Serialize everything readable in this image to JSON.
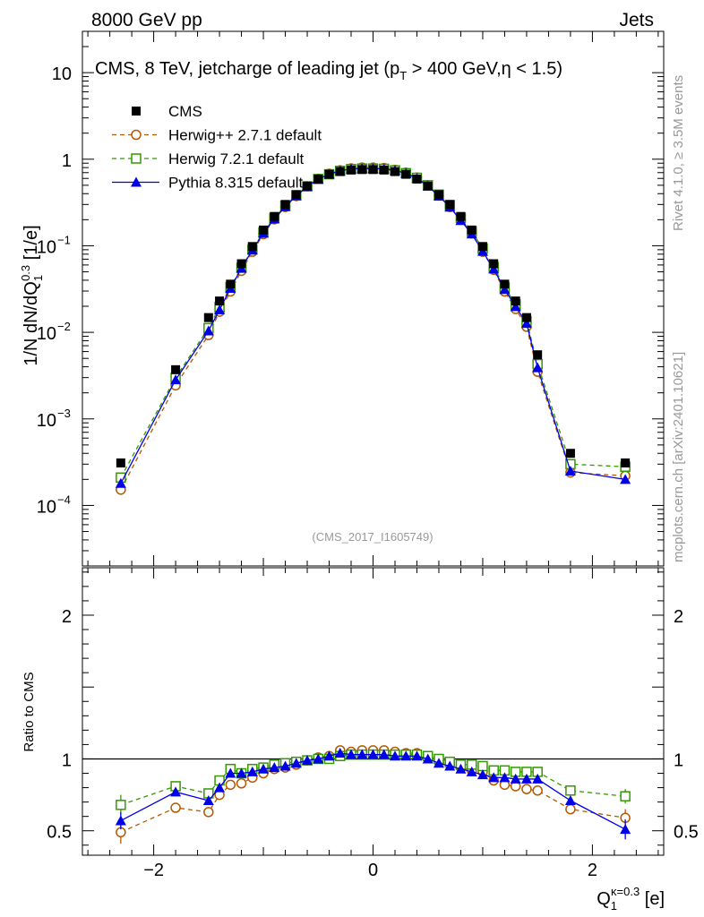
{
  "header": {
    "energy_label": "8000 GeV pp",
    "category_label": "Jets"
  },
  "side_text": {
    "rivet": "Rivet 4.1.0, ≥ 3.5M events",
    "mcplots": "mcplots.cern.ch [arXiv:2401.10621]"
  },
  "watermark": "(CMS_2017_I1605749)",
  "colors": {
    "cms": "#000000",
    "herwigpp": "#b35900",
    "herwig7": "#339900",
    "pythia": "#0000e6"
  },
  "chart_data": [
    {
      "type": "line",
      "title": "CMS, 8 TeV, jetcharge of leading jet (p_T > 400 GeV,η < 1.5)",
      "ylabel": "1/N dN/dQ_1^0.3 [1/e]",
      "yscale": "log",
      "ylim": [
        2e-05,
        30
      ],
      "xlim": [
        -2.65,
        2.65
      ],
      "x": [
        -2.3,
        -1.8,
        -1.5,
        -1.4,
        -1.3,
        -1.2,
        -1.1,
        -1.0,
        -0.9,
        -0.8,
        -0.7,
        -0.6,
        -0.5,
        -0.4,
        -0.3,
        -0.2,
        -0.1,
        0.0,
        0.1,
        0.2,
        0.3,
        0.4,
        0.5,
        0.6,
        0.7,
        0.8,
        0.9,
        1.0,
        1.1,
        1.2,
        1.3,
        1.4,
        1.5,
        1.8,
        2.3
      ],
      "y_ticks": [
        {
          "value": 10,
          "label": "10"
        },
        {
          "value": 1,
          "label": "1"
        },
        {
          "value": 0.1,
          "label": "10",
          "sup": "−1"
        },
        {
          "value": 0.01,
          "label": "10",
          "sup": "−2"
        },
        {
          "value": 0.001,
          "label": "10",
          "sup": "−3"
        },
        {
          "value": 0.0001,
          "label": "10",
          "sup": "−4"
        }
      ],
      "series": [
        {
          "name": "CMS",
          "style": "data",
          "values": [
            0.00031,
            0.0037,
            0.0148,
            0.023,
            0.036,
            0.062,
            0.098,
            0.152,
            0.218,
            0.3,
            0.39,
            0.49,
            0.59,
            0.67,
            0.72,
            0.75,
            0.76,
            0.76,
            0.75,
            0.72,
            0.67,
            0.59,
            0.49,
            0.39,
            0.3,
            0.218,
            0.152,
            0.098,
            0.062,
            0.036,
            0.023,
            0.0148,
            0.0055,
            0.0004,
            0.00031
          ]
        },
        {
          "name": "Herwig++ 2.7.1 default",
          "style": "herwigpp",
          "values": [
            0.000152,
            0.00244,
            0.0093,
            0.0173,
            0.0296,
            0.0513,
            0.0852,
            0.136,
            0.202,
            0.28,
            0.375,
            0.485,
            0.595,
            0.68,
            0.745,
            0.785,
            0.8,
            0.8,
            0.79,
            0.755,
            0.7,
            0.615,
            0.5,
            0.38,
            0.28,
            0.2,
            0.139,
            0.0852,
            0.0527,
            0.0296,
            0.0186,
            0.0116,
            0.0035,
            0.00024,
            0.00022
          ]
        },
        {
          "name": "Herwig 7.2.1 default",
          "style": "herwig7",
          "values": [
            0.00021,
            0.003,
            0.0112,
            0.0196,
            0.0333,
            0.0558,
            0.0911,
            0.143,
            0.209,
            0.291,
            0.382,
            0.485,
            0.59,
            0.67,
            0.735,
            0.77,
            0.78,
            0.78,
            0.775,
            0.745,
            0.69,
            0.61,
            0.5,
            0.39,
            0.295,
            0.21,
            0.146,
            0.093,
            0.057,
            0.033,
            0.021,
            0.0135,
            0.0043,
            0.0003,
            0.00028
          ]
        },
        {
          "name": "Pythia 8.315 default",
          "style": "pythia",
          "values": [
            0.00018,
            0.00283,
            0.0104,
            0.0182,
            0.0322,
            0.0551,
            0.0891,
            0.14,
            0.204,
            0.283,
            0.378,
            0.485,
            0.59,
            0.67,
            0.735,
            0.77,
            0.78,
            0.78,
            0.77,
            0.74,
            0.685,
            0.6,
            0.49,
            0.375,
            0.28,
            0.196,
            0.137,
            0.0862,
            0.0539,
            0.0313,
            0.0198,
            0.0127,
            0.0039,
            0.00025,
            0.0002
          ]
        }
      ],
      "legend_position": "top-left"
    },
    {
      "type": "line",
      "title": "",
      "ylabel": "Ratio to CMS",
      "xlabel": "Q_1^κ=0.3 [e]",
      "ylim": [
        0.33,
        2.33
      ],
      "xlim": [
        -2.65,
        2.65
      ],
      "reference_line": 1,
      "y_ticks": [
        {
          "value": 0.5,
          "label": "0.5"
        },
        {
          "value": 1,
          "label": "1"
        },
        {
          "value": 2,
          "label": "2"
        }
      ],
      "x_ticks": [
        {
          "value": -2,
          "label": "−2"
        },
        {
          "value": 0,
          "label": "0"
        },
        {
          "value": 2,
          "label": "2"
        }
      ],
      "x": [
        -2.3,
        -1.8,
        -1.5,
        -1.4,
        -1.3,
        -1.2,
        -1.1,
        -1.0,
        -0.9,
        -0.8,
        -0.7,
        -0.6,
        -0.5,
        -0.4,
        -0.3,
        -0.2,
        -0.1,
        0.0,
        0.1,
        0.2,
        0.3,
        0.4,
        0.5,
        0.6,
        0.7,
        0.8,
        0.9,
        1.0,
        1.1,
        1.2,
        1.3,
        1.4,
        1.5,
        1.8,
        2.3
      ],
      "series": [
        {
          "name": "Herwig++ 2.7.1 default",
          "style": "herwigpp",
          "values": [
            0.49,
            0.66,
            0.63,
            0.75,
            0.82,
            0.83,
            0.87,
            0.9,
            0.93,
            0.94,
            0.96,
            0.99,
            1.01,
            1.02,
            1.06,
            1.05,
            1.06,
            1.06,
            1.06,
            1.05,
            1.04,
            1.04,
            1.02,
            0.98,
            0.96,
            0.94,
            0.92,
            0.91,
            0.85,
            0.82,
            0.81,
            0.79,
            0.78,
            0.65,
            0.59
          ],
          "errors": [
            0.08,
            0.02,
            0.02,
            0.01,
            0.01,
            0.01,
            0.01,
            0.01,
            0.01,
            0.01,
            0.01,
            0.01,
            0.01,
            0.01,
            0.01,
            0.01,
            0.01,
            0.01,
            0.01,
            0.01,
            0.01,
            0.01,
            0.01,
            0.01,
            0.01,
            0.01,
            0.01,
            0.01,
            0.01,
            0.01,
            0.01,
            0.01,
            0.02,
            0.02,
            0.06
          ]
        },
        {
          "name": "Herwig 7.2.1 default",
          "style": "herwig7",
          "values": [
            0.68,
            0.81,
            0.76,
            0.85,
            0.93,
            0.9,
            0.93,
            0.94,
            0.96,
            0.97,
            0.98,
            0.99,
            1.0,
            1.0,
            1.02,
            1.03,
            1.03,
            1.03,
            1.03,
            1.03,
            1.03,
            1.03,
            1.02,
            1.0,
            0.98,
            0.96,
            0.96,
            0.95,
            0.92,
            0.92,
            0.91,
            0.91,
            0.91,
            0.78,
            0.74
          ],
          "errors": [
            0.07,
            0.02,
            0.02,
            0.01,
            0.01,
            0.01,
            0.01,
            0.01,
            0.01,
            0.01,
            0.01,
            0.01,
            0.01,
            0.01,
            0.01,
            0.01,
            0.01,
            0.01,
            0.01,
            0.01,
            0.01,
            0.01,
            0.01,
            0.01,
            0.01,
            0.01,
            0.01,
            0.01,
            0.01,
            0.01,
            0.01,
            0.01,
            0.02,
            0.02,
            0.05
          ]
        },
        {
          "name": "Pythia 8.315 default",
          "style": "pythia",
          "values": [
            0.57,
            0.77,
            0.71,
            0.8,
            0.9,
            0.9,
            0.91,
            0.93,
            0.94,
            0.95,
            0.97,
            0.99,
            1.0,
            1.02,
            1.04,
            1.03,
            1.03,
            1.03,
            1.03,
            1.02,
            1.02,
            1.02,
            1.0,
            0.97,
            0.95,
            0.93,
            0.91,
            0.89,
            0.87,
            0.87,
            0.86,
            0.86,
            0.86,
            0.71,
            0.51
          ],
          "errors": [
            0.06,
            0.02,
            0.02,
            0.01,
            0.01,
            0.01,
            0.01,
            0.01,
            0.01,
            0.01,
            0.01,
            0.01,
            0.01,
            0.01,
            0.01,
            0.01,
            0.01,
            0.01,
            0.01,
            0.01,
            0.01,
            0.01,
            0.01,
            0.01,
            0.01,
            0.01,
            0.01,
            0.01,
            0.01,
            0.01,
            0.01,
            0.01,
            0.02,
            0.02,
            0.07
          ]
        }
      ]
    }
  ]
}
